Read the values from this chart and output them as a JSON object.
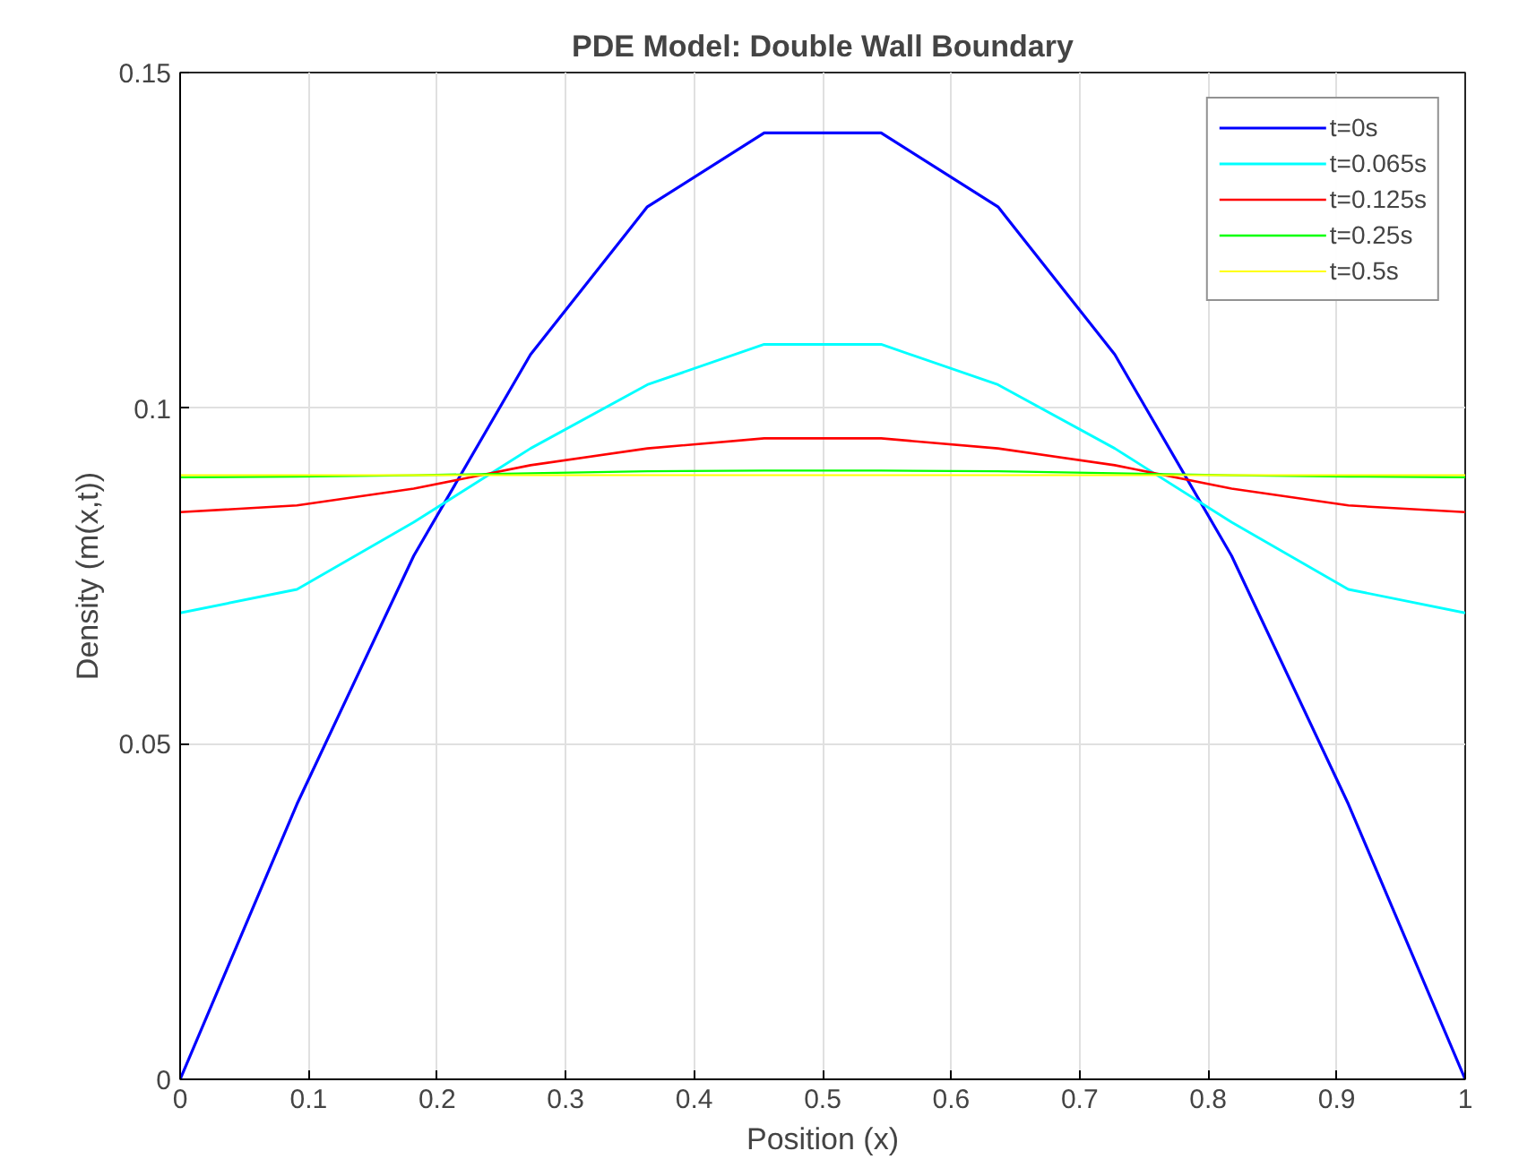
{
  "chart_data": {
    "type": "line",
    "title": "PDE Model: Double Wall Boundary",
    "xlabel": "Position (x)",
    "ylabel": "Density (m(x,t))",
    "x": [
      0,
      0.0909,
      0.1818,
      0.2727,
      0.3636,
      0.4545,
      0.5455,
      0.6364,
      0.7273,
      0.8182,
      0.9091,
      1
    ],
    "series": [
      {
        "name": "t=0s",
        "color": "#0000ff",
        "values": [
          0,
          0.041,
          0.078,
          0.108,
          0.13,
          0.141,
          0.141,
          0.13,
          0.108,
          0.078,
          0.041,
          0
        ]
      },
      {
        "name": "t=0.065s",
        "color": "#00ffff",
        "values": [
          0.0695,
          0.073,
          0.083,
          0.094,
          0.1035,
          0.1095,
          0.1095,
          0.1035,
          0.094,
          0.083,
          0.073,
          0.0695
        ]
      },
      {
        "name": "t=0.125s",
        "color": "#ff0000",
        "values": [
          0.0845,
          0.0855,
          0.088,
          0.0915,
          0.094,
          0.0955,
          0.0955,
          0.094,
          0.0915,
          0.088,
          0.0855,
          0.0845
        ]
      },
      {
        "name": "t=0.25s",
        "color": "#00ff00",
        "values": [
          0.0897,
          0.0898,
          0.09,
          0.0903,
          0.0906,
          0.0907,
          0.0907,
          0.0906,
          0.0903,
          0.09,
          0.0898,
          0.0897
        ]
      },
      {
        "name": "t=0.5s",
        "color": "#ffff00",
        "values": [
          0.09,
          0.09,
          0.09,
          0.09,
          0.09,
          0.09,
          0.09,
          0.09,
          0.09,
          0.09,
          0.09,
          0.09
        ]
      }
    ],
    "xlim": [
      0,
      1
    ],
    "xticks": [
      0,
      0.1,
      0.2,
      0.3,
      0.4,
      0.5,
      0.6,
      0.7,
      0.8,
      0.9,
      1
    ],
    "ylim": [
      0,
      0.15
    ],
    "yticks": [
      0,
      0.05,
      0.1,
      0.15
    ],
    "grid": true,
    "legend": "top right",
    "marker": "none",
    "line_style": "solid"
  }
}
